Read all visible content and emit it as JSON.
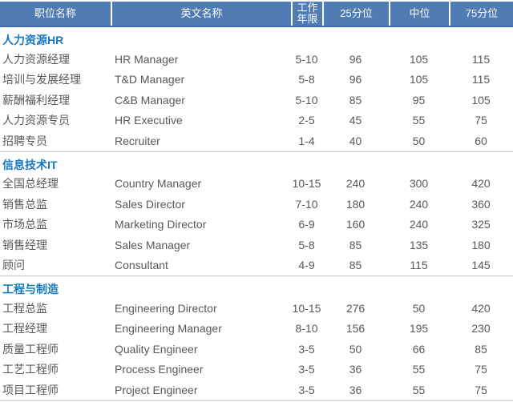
{
  "colors": {
    "header_bg": "#4e7cb3",
    "header_border": "#3d6da7",
    "header_text": "#ffffff",
    "section_title_text": "#1779c2",
    "row_text": "#57585a",
    "divider": "#cbcbcb"
  },
  "chart_data": {
    "type": "table",
    "columns": [
      {
        "key": "title-cn",
        "label": "职位名称"
      },
      {
        "key": "title-en",
        "label": "英文名称"
      },
      {
        "key": "years",
        "label": "工作年限",
        "label_lines": [
          "工作",
          "年限"
        ]
      },
      {
        "key": "p25",
        "label": "25分位"
      },
      {
        "key": "median",
        "label": "中位"
      },
      {
        "key": "p75",
        "label": "75分位"
      }
    ],
    "sections": [
      {
        "title": "人力资源HR",
        "rows": [
          [
            "人力资源经理",
            "HR Manager",
            "5-10",
            "96",
            "105",
            "115"
          ],
          [
            "培训与发展经理",
            "T&D Manager",
            "5-8",
            "96",
            "105",
            "115"
          ],
          [
            "薪酬福利经理",
            "C&B Manager",
            "5-10",
            "85",
            "95",
            "105"
          ],
          [
            "人力资源专员",
            "HR Executive",
            "2-5",
            "45",
            "55",
            "75"
          ],
          [
            "招聘专员",
            "Recruiter",
            "1-4",
            "40",
            "50",
            "60"
          ]
        ]
      },
      {
        "title": "信息技术IT",
        "rows": [
          [
            "全国总经理",
            "Country Manager",
            "10-15",
            "240",
            "300",
            "420"
          ],
          [
            "销售总监",
            "Sales Director",
            "7-10",
            "180",
            "240",
            "360"
          ],
          [
            "市场总监",
            "Marketing Director",
            "6-9",
            "160",
            "240",
            "325"
          ],
          [
            "销售经理",
            "Sales Manager",
            "5-8",
            "85",
            "135",
            "180"
          ],
          [
            "顾问",
            "Consultant",
            "4-9",
            "85",
            "115",
            "145"
          ]
        ]
      },
      {
        "title": "工程与制造",
        "rows": [
          [
            "工程总监",
            "Engineering Director",
            "10-15",
            "276",
            "50",
            "420"
          ],
          [
            "工程经理",
            "Engineering Manager",
            "8-10",
            "156",
            "195",
            "230"
          ],
          [
            "质量工程师",
            "Quality Engineer",
            "3-5",
            "50",
            "66",
            "85"
          ],
          [
            "工艺工程师",
            "Process Engineer",
            "3-5",
            "36",
            "55",
            "75"
          ],
          [
            "项目工程师",
            "Project Engineer",
            "3-5",
            "36",
            "55",
            "75"
          ]
        ]
      }
    ]
  }
}
